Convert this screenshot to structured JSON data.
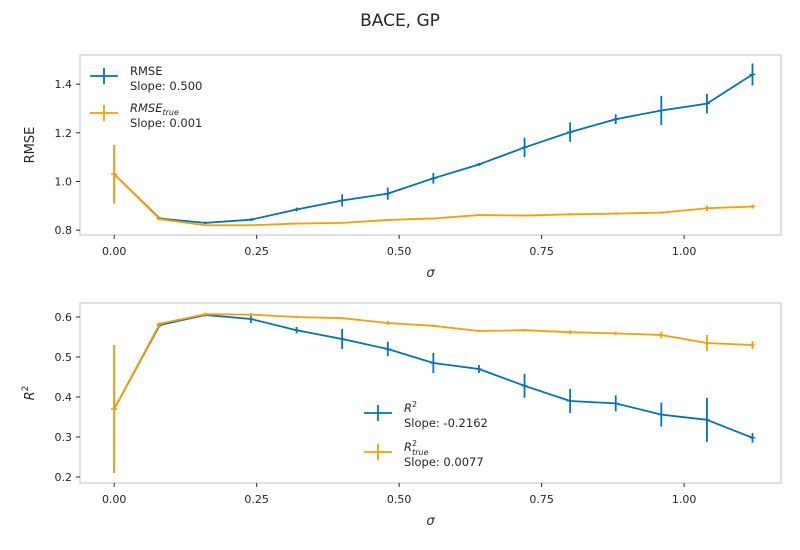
{
  "figure": {
    "suptitle": "BACE, GP"
  },
  "colors": {
    "series1": "#0173b2",
    "series2": "#f5a000"
  },
  "chart_data": [
    {
      "type": "line",
      "xlabel": "σ",
      "ylabel": "RMSE",
      "xlim": [
        -0.06,
        1.17
      ],
      "ylim": [
        0.78,
        1.52
      ],
      "xticks": [
        0,
        0.25,
        0.5,
        0.75,
        1.0
      ],
      "xticklabels": [
        "0.00",
        "0.25",
        "0.50",
        "0.75",
        "1.00"
      ],
      "yticks": [
        0.8,
        1.0,
        1.2,
        1.4
      ],
      "yticklabels": [
        "0.8",
        "1.0",
        "1.2",
        "1.4"
      ],
      "legend_position": "top-left",
      "x": [
        0.0,
        0.08,
        0.16,
        0.24,
        0.32,
        0.4,
        0.48,
        0.56,
        0.64,
        0.72,
        0.8,
        0.88,
        0.96,
        1.04,
        1.12
      ],
      "series": [
        {
          "name": "RMSE",
          "sub": "",
          "slope_text": "Slope: 0.500",
          "color": "#0173b2",
          "values": [
            1.03,
            0.848,
            0.83,
            0.843,
            0.885,
            0.922,
            0.95,
            1.013,
            1.07,
            1.14,
            1.203,
            1.256,
            1.292,
            1.32,
            1.44
          ],
          "errors": [
            0.12,
            0.006,
            0.005,
            0.006,
            0.008,
            0.025,
            0.025,
            0.022,
            0.006,
            0.04,
            0.04,
            0.02,
            0.06,
            0.04,
            0.045
          ]
        },
        {
          "name": "RMSE",
          "sub": "true",
          "slope_text": "Slope: 0.001",
          "color": "#f5a000",
          "values": [
            1.03,
            0.845,
            0.82,
            0.82,
            0.827,
            0.83,
            0.842,
            0.848,
            0.862,
            0.86,
            0.865,
            0.868,
            0.872,
            0.89,
            0.897
          ],
          "errors": [
            0.12,
            0.005,
            0.004,
            0.004,
            0.003,
            0.003,
            0.004,
            0.003,
            0.003,
            0.003,
            0.005,
            0.005,
            0.005,
            0.012,
            0.008
          ]
        }
      ]
    },
    {
      "type": "line",
      "xlabel": "σ",
      "ylabel": "R",
      "ylabel_sup": "2",
      "xlim": [
        -0.06,
        1.17
      ],
      "ylim": [
        0.185,
        0.635
      ],
      "xticks": [
        0,
        0.25,
        0.5,
        0.75,
        1.0
      ],
      "xticklabels": [
        "0.00",
        "0.25",
        "0.50",
        "0.75",
        "1.00"
      ],
      "yticks": [
        0.2,
        0.3,
        0.4,
        0.5,
        0.6
      ],
      "yticklabels": [
        "0.2",
        "0.3",
        "0.4",
        "0.5",
        "0.6"
      ],
      "legend_position": "lower-center",
      "x": [
        0.0,
        0.08,
        0.16,
        0.24,
        0.32,
        0.4,
        0.48,
        0.56,
        0.64,
        0.72,
        0.8,
        0.88,
        0.96,
        1.04,
        1.12
      ],
      "series": [
        {
          "name": "R",
          "sup": "2",
          "sub": "",
          "slope_text": "Slope: -0.2162",
          "color": "#0173b2",
          "values": [
            0.37,
            0.58,
            0.605,
            0.595,
            0.567,
            0.545,
            0.52,
            0.485,
            0.47,
            0.428,
            0.39,
            0.384,
            0.356,
            0.343,
            0.298
          ],
          "errors": [
            0.16,
            0.005,
            0.004,
            0.01,
            0.008,
            0.025,
            0.018,
            0.025,
            0.01,
            0.03,
            0.03,
            0.02,
            0.03,
            0.055,
            0.012
          ]
        },
        {
          "name": "R",
          "sup": "2",
          "sub": "true",
          "slope_text": "Slope: 0.0077",
          "color": "#f5a000",
          "values": [
            0.37,
            0.583,
            0.607,
            0.606,
            0.6,
            0.597,
            0.585,
            0.578,
            0.565,
            0.567,
            0.562,
            0.559,
            0.555,
            0.535,
            0.53
          ],
          "errors": [
            0.16,
            0.004,
            0.004,
            0.004,
            0.003,
            0.003,
            0.005,
            0.003,
            0.003,
            0.003,
            0.005,
            0.004,
            0.008,
            0.02,
            0.01
          ]
        }
      ]
    }
  ]
}
